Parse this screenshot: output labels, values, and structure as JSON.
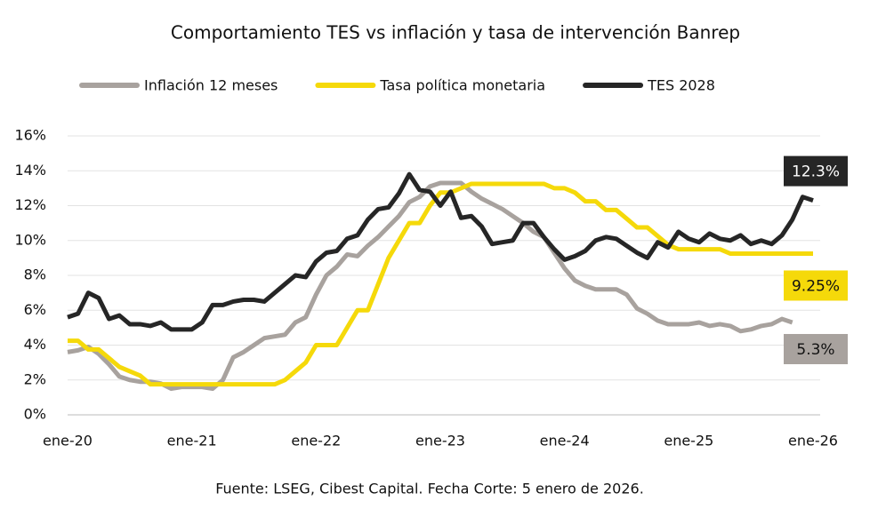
{
  "chart_data": {
    "type": "line",
    "title": "Comportamiento TES vs inflación y tasa de intervención Banrep",
    "source": "Fuente: LSEG, Cibest Capital. Fecha Corte: 5 enero de 2026.",
    "categories": [
      "ene-20",
      null,
      null,
      null,
      null,
      null,
      null,
      null,
      null,
      null,
      null,
      null,
      "ene-21",
      null,
      null,
      null,
      null,
      null,
      null,
      null,
      null,
      null,
      null,
      null,
      "ene-22",
      null,
      null,
      null,
      null,
      null,
      null,
      null,
      null,
      null,
      null,
      null,
      "ene-23",
      null,
      null,
      null,
      null,
      null,
      null,
      null,
      null,
      null,
      null,
      null,
      "ene-24",
      null,
      null,
      null,
      null,
      null,
      null,
      null,
      null,
      null,
      null,
      null,
      "ene-25",
      null,
      null,
      null,
      null,
      null,
      null,
      null,
      null,
      null,
      null,
      null,
      "ene-26"
    ],
    "series": [
      {
        "name": "Inflación 12 meses",
        "color": "#a8a29e",
        "values": [
          3.6,
          3.7,
          3.9,
          3.5,
          2.9,
          2.2,
          2.0,
          1.9,
          1.9,
          1.8,
          1.5,
          1.6,
          1.6,
          1.6,
          1.5,
          2.0,
          3.3,
          3.6,
          4.0,
          4.4,
          4.5,
          4.6,
          5.3,
          5.6,
          6.9,
          8.0,
          8.5,
          9.2,
          9.1,
          9.7,
          10.2,
          10.8,
          11.4,
          12.2,
          12.5,
          13.1,
          13.3,
          13.3,
          13.3,
          12.8,
          12.4,
          12.1,
          11.8,
          11.4,
          11.0,
          10.5,
          10.2,
          9.3,
          8.4,
          7.7,
          7.4,
          7.2,
          7.2,
          7.2,
          6.9,
          6.1,
          5.8,
          5.4,
          5.2,
          5.2,
          5.2,
          5.3,
          5.1,
          5.2,
          5.1,
          4.8,
          4.9,
          5.1,
          5.2,
          5.5,
          5.3,
          null,
          null
        ],
        "value_labels": [
          null,
          null,
          null,
          null,
          null,
          null,
          null,
          null,
          null,
          null,
          null,
          null,
          null,
          null,
          null,
          null,
          null,
          null,
          null,
          null,
          null,
          null,
          null,
          null,
          null,
          null,
          null,
          null,
          null,
          null,
          null,
          null,
          null,
          null,
          null,
          null,
          null,
          null,
          null,
          null,
          null,
          null,
          null,
          null,
          null,
          null,
          null,
          null,
          null,
          null,
          null,
          null,
          null,
          null,
          null,
          null,
          null,
          null,
          null,
          null,
          null,
          null,
          null,
          null,
          null,
          null,
          null,
          null,
          null,
          null,
          "5.3%",
          null,
          null
        ]
      },
      {
        "name": "Tasa política monetaria",
        "color": "#f5d90a",
        "values": [
          4.25,
          4.25,
          3.75,
          3.75,
          3.25,
          2.75,
          2.5,
          2.25,
          1.75,
          1.75,
          1.75,
          1.75,
          1.75,
          1.75,
          1.75,
          1.75,
          1.75,
          1.75,
          1.75,
          1.75,
          1.75,
          2.0,
          2.5,
          3.0,
          4.0,
          4.0,
          4.0,
          5.0,
          6.0,
          6.0,
          7.5,
          9.0,
          10.0,
          11.0,
          11.0,
          12.0,
          12.75,
          12.75,
          13.0,
          13.25,
          13.25,
          13.25,
          13.25,
          13.25,
          13.25,
          13.25,
          13.25,
          13.0,
          13.0,
          12.75,
          12.25,
          12.25,
          11.75,
          11.75,
          11.25,
          10.75,
          10.75,
          10.25,
          9.75,
          9.5,
          9.5,
          9.5,
          9.5,
          9.5,
          9.25,
          9.25,
          9.25,
          9.25,
          9.25,
          9.25,
          9.25,
          9.25,
          9.25
        ],
        "value_labels": [
          null,
          null,
          null,
          null,
          null,
          null,
          null,
          null,
          null,
          null,
          null,
          null,
          null,
          null,
          null,
          null,
          null,
          null,
          null,
          null,
          null,
          null,
          null,
          null,
          null,
          null,
          null,
          null,
          null,
          null,
          null,
          null,
          null,
          null,
          null,
          null,
          null,
          null,
          null,
          null,
          null,
          null,
          null,
          null,
          null,
          null,
          null,
          null,
          null,
          null,
          null,
          null,
          null,
          null,
          null,
          null,
          null,
          null,
          null,
          null,
          null,
          null,
          null,
          null,
          null,
          null,
          null,
          null,
          null,
          null,
          null,
          null,
          "9.25%"
        ]
      },
      {
        "name": "TES 2028",
        "color": "#262626",
        "values": [
          5.6,
          5.8,
          7.0,
          6.7,
          5.5,
          5.7,
          5.2,
          5.2,
          5.1,
          5.3,
          4.9,
          4.9,
          4.9,
          5.3,
          6.3,
          6.3,
          6.5,
          6.6,
          6.6,
          6.5,
          7.0,
          7.5,
          8.0,
          7.9,
          8.8,
          9.3,
          9.4,
          10.1,
          10.3,
          11.2,
          11.8,
          11.9,
          12.7,
          13.8,
          12.9,
          12.8,
          12.0,
          12.8,
          11.3,
          11.4,
          10.8,
          9.8,
          9.9,
          10.0,
          11.0,
          11.0,
          10.2,
          9.5,
          8.9,
          9.1,
          9.4,
          10.0,
          10.2,
          10.1,
          9.7,
          9.3,
          9.0,
          9.9,
          9.6,
          10.5,
          10.1,
          9.9,
          10.4,
          10.1,
          10.0,
          10.3,
          9.8,
          10.0,
          9.8,
          10.3,
          11.2,
          12.5,
          12.3
        ],
        "value_labels": [
          null,
          null,
          null,
          null,
          null,
          null,
          null,
          null,
          null,
          null,
          null,
          null,
          null,
          null,
          null,
          null,
          null,
          null,
          null,
          null,
          null,
          null,
          null,
          null,
          null,
          null,
          null,
          null,
          null,
          null,
          null,
          null,
          null,
          null,
          null,
          null,
          null,
          null,
          null,
          null,
          null,
          null,
          null,
          null,
          null,
          null,
          null,
          null,
          null,
          null,
          null,
          null,
          null,
          null,
          null,
          null,
          null,
          null,
          null,
          null,
          null,
          null,
          null,
          null,
          null,
          null,
          null,
          null,
          null,
          null,
          null,
          null,
          "12.3%"
        ]
      }
    ],
    "ylim": [
      0,
      16
    ],
    "yticks": [
      {
        "value": 0,
        "label": "0%"
      },
      {
        "value": 2,
        "label": "2%"
      },
      {
        "value": 4,
        "label": "4%"
      },
      {
        "value": 6,
        "label": "6%"
      },
      {
        "value": 8,
        "label": "8%"
      },
      {
        "value": 10,
        "label": "10%"
      },
      {
        "value": 12,
        "label": "12%"
      },
      {
        "value": 14,
        "label": "14%"
      },
      {
        "value": 16,
        "label": "16%"
      }
    ],
    "grid": true,
    "legend": "top"
  }
}
